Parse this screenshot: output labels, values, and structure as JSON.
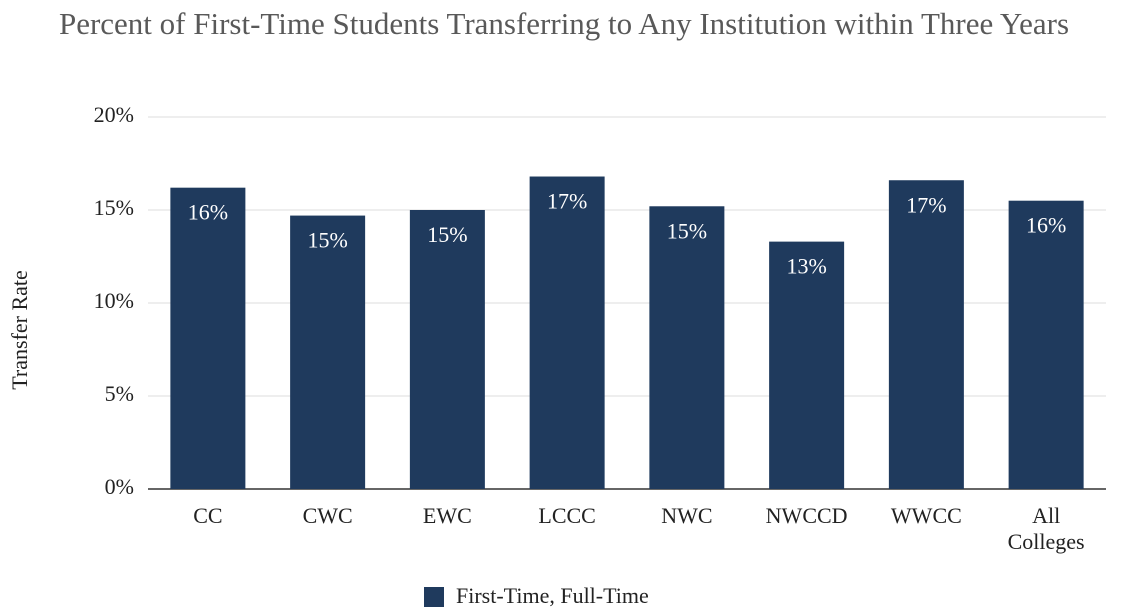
{
  "chart_data": {
    "type": "bar",
    "title": "Percent of First-Time Students Transferring to Any Institution within Three Years",
    "y_axis_label": "Transfer Rate",
    "categories": [
      "CC",
      "CWC",
      "EWC",
      "LCCC",
      "NWC",
      "NWCCD",
      "WWCC",
      "All Colleges"
    ],
    "series": [
      {
        "name": "First-Time, Full-Time",
        "color": "#1f3a5d",
        "values": [
          16.2,
          14.7,
          15.0,
          16.8,
          15.2,
          13.3,
          16.6,
          15.5
        ],
        "value_labels": [
          "16%",
          "15%",
          "15%",
          "17%",
          "15%",
          "13%",
          "17%",
          "16%"
        ]
      }
    ],
    "ylim": [
      0,
      20
    ],
    "yticks": [
      {
        "value": 0,
        "label": "0%"
      },
      {
        "value": 5,
        "label": "5%"
      },
      {
        "value": 10,
        "label": "10%"
      },
      {
        "value": 15,
        "label": "15%"
      },
      {
        "value": 20,
        "label": "20%"
      }
    ],
    "grid": true,
    "legend": "bottom"
  }
}
